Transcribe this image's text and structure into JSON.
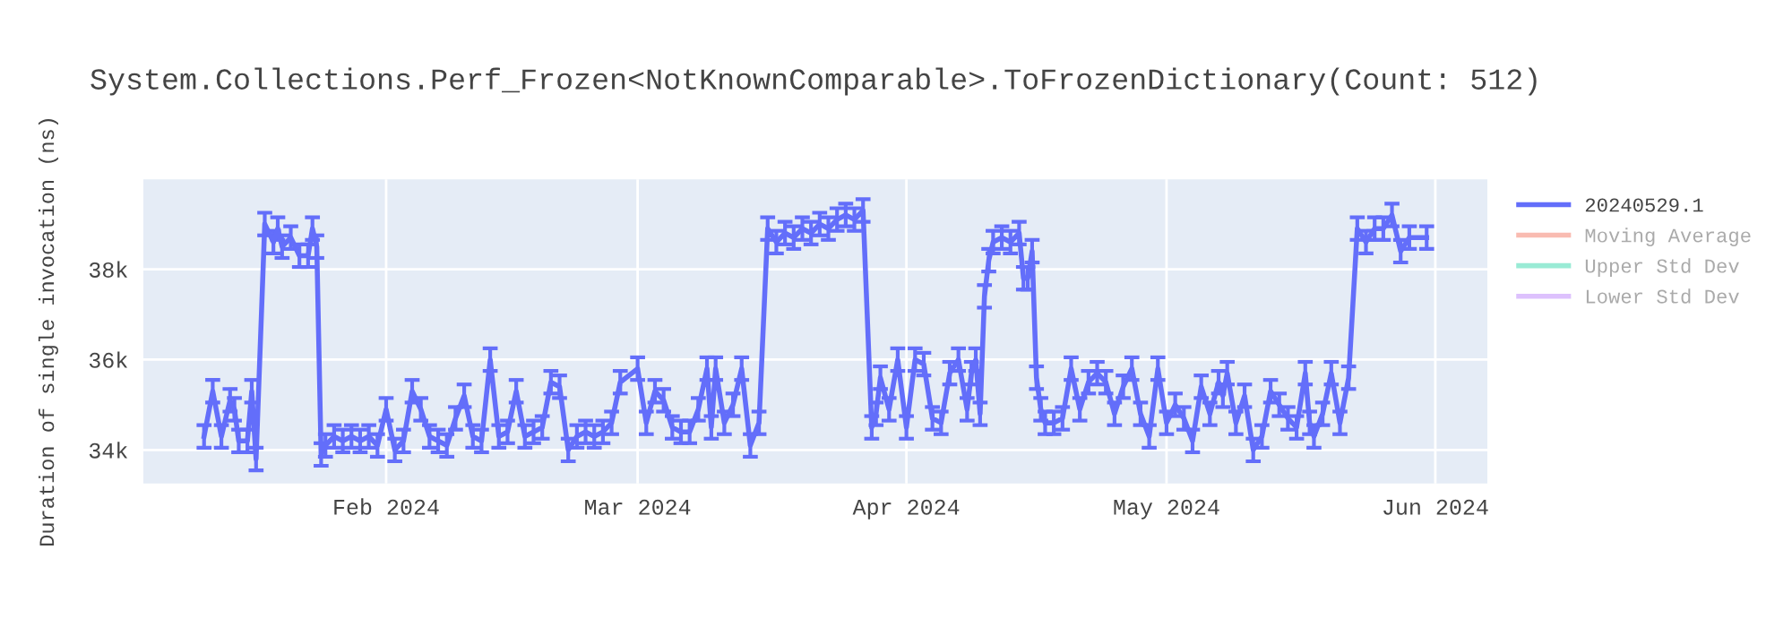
{
  "chart_data": {
    "type": "line",
    "title": "System.Collections.Perf_Frozen<NotKnownComparable>.ToFrozenDictionary(Count: 512)",
    "ylabel": "Duration of single invocation (ns)",
    "xlim": [
      "2024-01-04",
      "2024-06-07"
    ],
    "xticks": [
      {
        "value": "2024-02-01",
        "label": "Feb 2024"
      },
      {
        "value": "2024-03-01",
        "label": "Mar 2024"
      },
      {
        "value": "2024-04-01",
        "label": "Apr 2024"
      },
      {
        "value": "2024-05-01",
        "label": "May 2024"
      },
      {
        "value": "2024-06-01",
        "label": "Jun 2024"
      }
    ],
    "ylim": [
      33260,
      39990
    ],
    "yticks": [
      {
        "value": 34000,
        "label": "34k"
      },
      {
        "value": 36000,
        "label": "36k"
      },
      {
        "value": 38000,
        "label": "38k"
      }
    ],
    "grid": true,
    "legend": "top right",
    "marker": "none",
    "line_style": "solid",
    "series": [
      {
        "name": "20240529.1",
        "color": "#636efa",
        "x": [
          "2024-01-11",
          "2024-01-12",
          "2024-01-13",
          "2024-01-14",
          "2024-01-14T12:00",
          "2024-01-15",
          "2024-01-16",
          "2024-01-16T12:00",
          "2024-01-17",
          "2024-01-18",
          "2024-01-19",
          "2024-01-19T12:00",
          "2024-01-20",
          "2024-01-21",
          "2024-01-22",
          "2024-01-23",
          "2024-01-23T12:00",
          "2024-01-24",
          "2024-01-24T12:00",
          "2024-01-25",
          "2024-01-26",
          "2024-01-27",
          "2024-01-28",
          "2024-01-29",
          "2024-01-30",
          "2024-01-31",
          "2024-02-01",
          "2024-02-02",
          "2024-02-03",
          "2024-02-04",
          "2024-02-05",
          "2024-02-06",
          "2024-02-07",
          "2024-02-08",
          "2024-02-09",
          "2024-02-10",
          "2024-02-11",
          "2024-02-12",
          "2024-02-13",
          "2024-02-14",
          "2024-02-15",
          "2024-02-16",
          "2024-02-17",
          "2024-02-18",
          "2024-02-19",
          "2024-02-20",
          "2024-02-21",
          "2024-02-22",
          "2024-02-23",
          "2024-02-24",
          "2024-02-25",
          "2024-02-26",
          "2024-02-27",
          "2024-02-28",
          "2024-03-01",
          "2024-03-02",
          "2024-03-03",
          "2024-03-04",
          "2024-03-05",
          "2024-03-06",
          "2024-03-07",
          "2024-03-08",
          "2024-03-09",
          "2024-03-09T12:00",
          "2024-03-10",
          "2024-03-11",
          "2024-03-12",
          "2024-03-13",
          "2024-03-14",
          "2024-03-15",
          "2024-03-16",
          "2024-03-17",
          "2024-03-18",
          "2024-03-19",
          "2024-03-20",
          "2024-03-21",
          "2024-03-22",
          "2024-03-23",
          "2024-03-24",
          "2024-03-25",
          "2024-03-26",
          "2024-03-27",
          "2024-03-28",
          "2024-03-28T12:00",
          "2024-03-29",
          "2024-03-30",
          "2024-03-31",
          "2024-04-01",
          "2024-04-02",
          "2024-04-03",
          "2024-04-04",
          "2024-04-05",
          "2024-04-06",
          "2024-04-07",
          "2024-04-08",
          "2024-04-08T12:00",
          "2024-04-09",
          "2024-04-09T12:00",
          "2024-04-10",
          "2024-04-10T12:00",
          "2024-04-11",
          "2024-04-12",
          "2024-04-13",
          "2024-04-14",
          "2024-04-14T12:00",
          "2024-04-15",
          "2024-04-15T12:00",
          "2024-04-16",
          "2024-04-16T12:00",
          "2024-04-17",
          "2024-04-18",
          "2024-04-19",
          "2024-04-20",
          "2024-04-21",
          "2024-04-22",
          "2024-04-23",
          "2024-04-24",
          "2024-04-25",
          "2024-04-26",
          "2024-04-27",
          "2024-04-28",
          "2024-04-29",
          "2024-04-30",
          "2024-05-01",
          "2024-05-02",
          "2024-05-03",
          "2024-05-04",
          "2024-05-05",
          "2024-05-06",
          "2024-05-07",
          "2024-05-07T12:00",
          "2024-05-08",
          "2024-05-09",
          "2024-05-10",
          "2024-05-11",
          "2024-05-12",
          "2024-05-13",
          "2024-05-14",
          "2024-05-15",
          "2024-05-16",
          "2024-05-17",
          "2024-05-17T12:00",
          "2024-05-18",
          "2024-05-19",
          "2024-05-20",
          "2024-05-21",
          "2024-05-22",
          "2024-05-23",
          "2024-05-24",
          "2024-05-25",
          "2024-05-26",
          "2024-05-27",
          "2024-05-28",
          "2024-05-29",
          "2024-05-31"
        ],
        "values": [
          34300,
          35300,
          34300,
          35100,
          34900,
          34200,
          34200,
          35300,
          33800,
          39000,
          38600,
          38900,
          38500,
          38700,
          38300,
          38300,
          38900,
          38500,
          33900,
          34100,
          34300,
          34200,
          34300,
          34200,
          34300,
          34100,
          34900,
          34000,
          34200,
          35300,
          34900,
          34300,
          34200,
          34100,
          34700,
          35200,
          34300,
          34200,
          36000,
          34300,
          34400,
          35300,
          34300,
          34400,
          34500,
          35500,
          35400,
          34000,
          34300,
          34400,
          34300,
          34400,
          34600,
          35500,
          35800,
          34600,
          35300,
          35100,
          34500,
          34400,
          34400,
          34900,
          35800,
          34500,
          35800,
          34600,
          35000,
          35800,
          34100,
          34600,
          38900,
          38600,
          38800,
          38700,
          38900,
          38800,
          39000,
          38900,
          39100,
          39200,
          39100,
          39300,
          34500,
          34800,
          35600,
          34900,
          36000,
          34500,
          36000,
          35900,
          34700,
          34600,
          35700,
          36000,
          34900,
          35700,
          36000,
          34800,
          37400,
          38200,
          38600,
          38700,
          38600,
          38800,
          37800,
          37800,
          38400,
          35600,
          34900,
          34600,
          34600,
          34700,
          35800,
          34900,
          35500,
          35700,
          35500,
          34800,
          35400,
          35800,
          34800,
          34300,
          35800,
          34600,
          35000,
          34700,
          34200,
          35400,
          34800,
          35500,
          35200,
          35700,
          34600,
          35200,
          34000,
          34300,
          35300,
          35000,
          34700,
          34500,
          35700,
          34600,
          34300,
          34800,
          35700,
          34600,
          35600,
          38900,
          38600,
          38900,
          38900,
          39200,
          38400,
          38700,
          38700
        ],
        "errors": [
          250,
          250,
          250,
          250,
          250,
          250,
          250,
          250,
          250,
          250,
          250,
          250,
          250,
          250,
          250,
          250,
          250,
          250,
          250,
          250,
          250,
          250,
          250,
          250,
          250,
          250,
          250,
          250,
          250,
          250,
          250,
          250,
          250,
          250,
          250,
          250,
          250,
          250,
          250,
          250,
          250,
          250,
          250,
          250,
          250,
          250,
          250,
          250,
          250,
          250,
          250,
          250,
          250,
          250,
          250,
          250,
          250,
          250,
          250,
          250,
          250,
          250,
          250,
          250,
          250,
          250,
          250,
          250,
          250,
          250,
          250,
          250,
          250,
          250,
          250,
          250,
          250,
          250,
          250,
          250,
          250,
          250,
          250,
          250,
          250,
          250,
          250,
          250,
          250,
          250,
          250,
          250,
          250,
          250,
          250,
          250,
          250,
          250,
          250,
          250,
          250,
          250,
          250,
          250,
          250,
          250,
          250,
          250,
          250,
          250,
          250,
          250,
          250,
          250,
          250,
          250,
          250,
          250,
          250,
          250,
          250,
          250,
          250,
          250,
          250,
          250,
          250,
          250,
          250,
          250,
          250,
          250,
          250,
          250,
          250,
          250,
          250,
          250,
          250,
          250,
          250,
          250,
          250,
          250,
          250,
          250,
          250,
          250,
          250,
          250,
          250,
          250,
          250,
          250,
          250
        ]
      },
      {
        "name": "Moving Average",
        "color": "#ef553b"
      },
      {
        "name": "Upper Std Dev",
        "color": "#00cc96"
      },
      {
        "name": "Lower Std Dev",
        "color": "#ab63fa"
      }
    ]
  }
}
